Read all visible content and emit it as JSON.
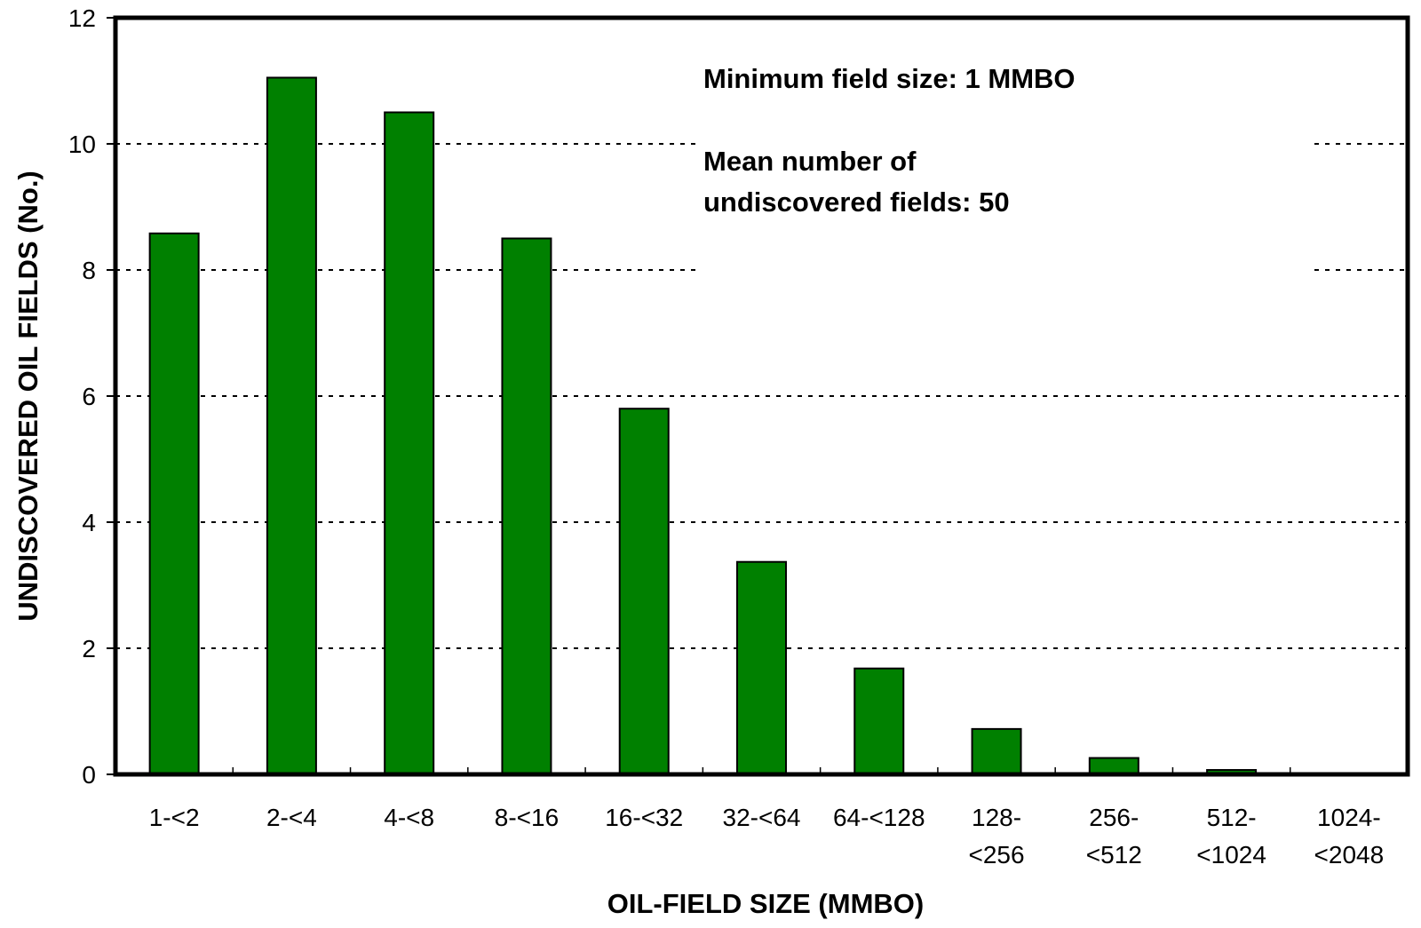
{
  "chart_data": {
    "type": "bar",
    "categories": [
      [
        "1-<2"
      ],
      [
        "2-<4"
      ],
      [
        "4-<8"
      ],
      [
        "8-<16"
      ],
      [
        "16-<32"
      ],
      [
        "32-<64"
      ],
      [
        "64-<128"
      ],
      [
        "128-",
        "<256"
      ],
      [
        "256-",
        "<512"
      ],
      [
        "512-",
        "<1024"
      ],
      [
        "1024-",
        "<2048"
      ]
    ],
    "values": [
      8.58,
      11.05,
      10.5,
      8.5,
      5.8,
      3.37,
      1.68,
      0.72,
      0.26,
      0.07,
      0
    ],
    "xlabel": "OIL-FIELD SIZE (MMBO)",
    "ylabel": "UNDISCOVERED OIL FIELDS (No.)",
    "ylim": [
      0,
      12
    ],
    "yticks": [
      "0",
      "2",
      "4",
      "6",
      "8",
      "10",
      "12"
    ],
    "grid": "dotted horizontal",
    "bar_color": "#008000",
    "annotations": {
      "min_field_size": "Minimum field size: 1 MMBO",
      "mean_line1": "Mean number of",
      "mean_line2": "undiscovered fields: 50"
    }
  }
}
